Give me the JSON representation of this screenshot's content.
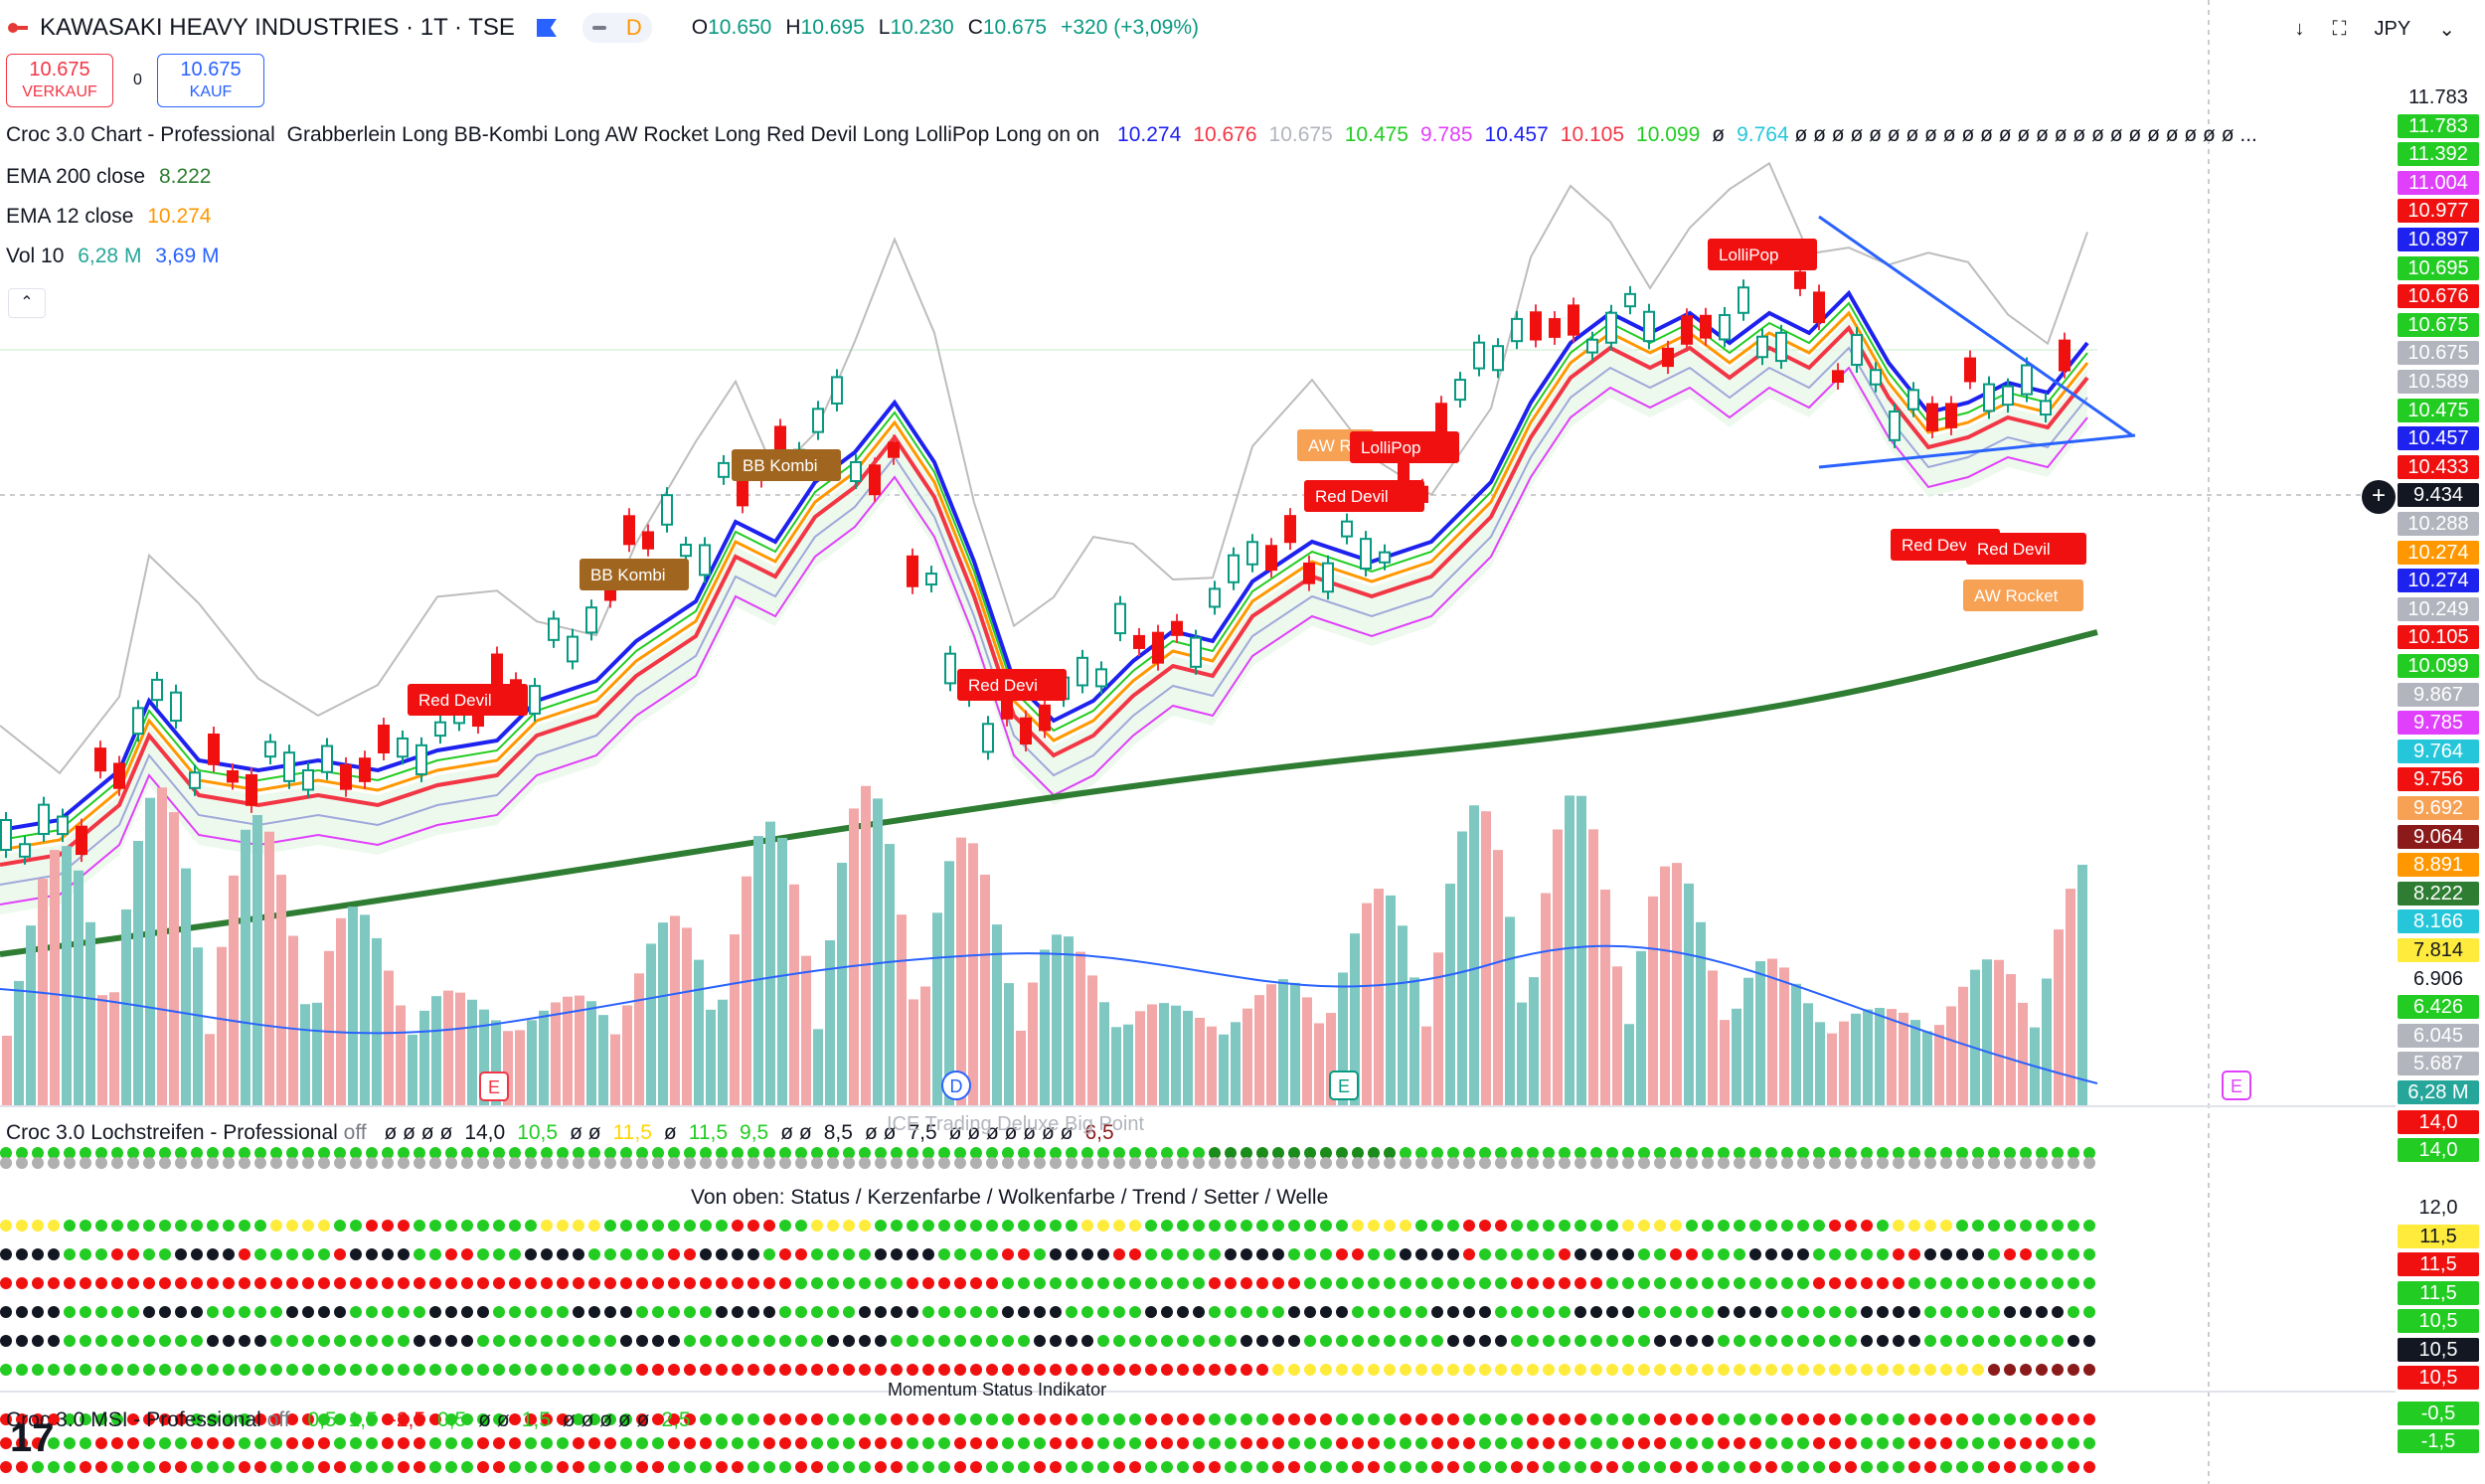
{
  "header": {
    "symbol": "KAWASAKI HEAVY INDUSTRIES · 1T · TSE",
    "mode": "D",
    "o_label": "O",
    "o": "10.650",
    "h_label": "H",
    "h": "10.695",
    "l_label": "L",
    "l": "10.230",
    "c_label": "C",
    "c": "10.675",
    "change": "+320 (+3,09%)"
  },
  "trade": {
    "sell_price": "10.675",
    "sell_label": "VERKAUF",
    "spread": "0",
    "buy_price": "10.675",
    "buy_label": "KAUF"
  },
  "toolbar_right": {
    "currency": "JPY"
  },
  "legend": {
    "croc_title": "Croc 3.0 Chart - Professional",
    "croc_params": "Grabberlein Long BB-Kombi Long AW Rocket Long Red Devil Long LolliPop Long on on",
    "croc_values": [
      {
        "v": "10.274",
        "c": "#1e22ee"
      },
      {
        "v": "10.676",
        "c": "#f23645"
      },
      {
        "v": "10.675",
        "c": "#b2b5be"
      },
      {
        "v": "10.475",
        "c": "#22cc22"
      },
      {
        "v": "9.785",
        "c": "#e040fb"
      },
      {
        "v": "10.457",
        "c": "#1e22ee"
      },
      {
        "v": "10.105",
        "c": "#f23645"
      },
      {
        "v": "10.099",
        "c": "#22cc22"
      },
      {
        "v": "ø",
        "c": "#131722"
      },
      {
        "v": "9.764",
        "c": "#26c6da"
      }
    ],
    "croc_tail": "ø ø ø ø ø ø ø ø ø ø ø ø ø ø ø ø ø ø ø ø ø ø ø ø ...",
    "ema200_label": "EMA 200 close",
    "ema200_value": "8.222",
    "ema12_label": "EMA 12 close",
    "ema12_value": "10.274",
    "vol_label": "Vol 10",
    "vol_value1": "6,28 M",
    "vol_value2": "3,69 M"
  },
  "signals": [
    {
      "text": "Red Devil",
      "color": "#f01010"
    },
    {
      "text": "BB Kombi",
      "color": "#a0661f"
    },
    {
      "text": "BB Kombi",
      "color": "#a0661f"
    },
    {
      "text": "Red Devi",
      "color": "#f01010"
    },
    {
      "text": "AW Ro",
      "color": "#f7a154"
    },
    {
      "text": "LolliPop",
      "color": "#f01010"
    },
    {
      "text": "Red Devil",
      "color": "#f01010"
    },
    {
      "text": "LolliPop",
      "color": "#f01010"
    },
    {
      "text": "Red Devi",
      "color": "#f01010"
    },
    {
      "text": "Red Devil",
      "color": "#f01010"
    },
    {
      "text": "AW Rocket",
      "color": "#f7a154"
    }
  ],
  "events": [
    "E",
    "D",
    "E",
    "E"
  ],
  "price_scale": [
    {
      "v": "11.783",
      "bg": "transparent",
      "fg": "#131722"
    },
    {
      "v": "11.783",
      "bg": "#22cc22",
      "fg": "#fff"
    },
    {
      "v": "11.392",
      "bg": "#22cc22",
      "fg": "#fff"
    },
    {
      "v": "11.004",
      "bg": "#e040fb",
      "fg": "#fff"
    },
    {
      "v": "10.977",
      "bg": "#f01010",
      "fg": "#fff"
    },
    {
      "v": "10.897",
      "bg": "#1e22ee",
      "fg": "#fff"
    },
    {
      "v": "10.695",
      "bg": "#22cc22",
      "fg": "#fff"
    },
    {
      "v": "10.676",
      "bg": "#f01010",
      "fg": "#fff"
    },
    {
      "v": "10.675",
      "bg": "#22cc22",
      "fg": "#fff"
    },
    {
      "v": "10.675",
      "bg": "#b2b5be",
      "fg": "#fff"
    },
    {
      "v": "10.589",
      "bg": "#b2b5be",
      "fg": "#fff"
    },
    {
      "v": "10.475",
      "bg": "#22cc22",
      "fg": "#fff"
    },
    {
      "v": "10.457",
      "bg": "#1e22ee",
      "fg": "#fff"
    },
    {
      "v": "10.433",
      "bg": "#f01010",
      "fg": "#fff"
    },
    {
      "v": "9.434",
      "bg": "#131722",
      "fg": "#fff"
    },
    {
      "v": "10.288",
      "bg": "#b2b5be",
      "fg": "#fff"
    },
    {
      "v": "10.274",
      "bg": "#ff9800",
      "fg": "#fff"
    },
    {
      "v": "10.274",
      "bg": "#1e22ee",
      "fg": "#fff"
    },
    {
      "v": "10.249",
      "bg": "#b2b5be",
      "fg": "#fff"
    },
    {
      "v": "10.105",
      "bg": "#f01010",
      "fg": "#fff"
    },
    {
      "v": "10.099",
      "bg": "#22cc22",
      "fg": "#fff"
    },
    {
      "v": "9.867",
      "bg": "#b2b5be",
      "fg": "#fff"
    },
    {
      "v": "9.785",
      "bg": "#e040fb",
      "fg": "#fff"
    },
    {
      "v": "9.764",
      "bg": "#26c6da",
      "fg": "#fff"
    },
    {
      "v": "9.756",
      "bg": "#f01010",
      "fg": "#fff"
    },
    {
      "v": "9.692",
      "bg": "#f7a154",
      "fg": "#fff"
    },
    {
      "v": "9.064",
      "bg": "#8b1a1a",
      "fg": "#fff"
    },
    {
      "v": "8.891",
      "bg": "#ff9800",
      "fg": "#fff"
    },
    {
      "v": "8.222",
      "bg": "#2e7d32",
      "fg": "#fff"
    },
    {
      "v": "8.166",
      "bg": "#26c6da",
      "fg": "#fff"
    },
    {
      "v": "7.814",
      "bg": "#ffeb3b",
      "fg": "#131722"
    },
    {
      "v": "6.906",
      "bg": "transparent",
      "fg": "#131722"
    },
    {
      "v": "6.426",
      "bg": "#22cc22",
      "fg": "#fff"
    },
    {
      "v": "6.045",
      "bg": "#b2b5be",
      "fg": "#fff"
    },
    {
      "v": "5.687",
      "bg": "#b2b5be",
      "fg": "#fff"
    },
    {
      "v": "6,28 M",
      "bg": "#26a69a",
      "fg": "#fff"
    }
  ],
  "lochstreifen": {
    "title": "Croc 3.0 Lochstreifen - Professional",
    "off": "off",
    "values": [
      {
        "v": "ø ø ø ø",
        "c": "#131722"
      },
      {
        "v": "14,0",
        "c": "#131722"
      },
      {
        "v": "10,5",
        "c": "#22cc22"
      },
      {
        "v": "ø ø",
        "c": "#131722"
      },
      {
        "v": "11,5",
        "c": "#ffd600"
      },
      {
        "v": "ø",
        "c": "#131722"
      },
      {
        "v": "11,5",
        "c": "#22cc22"
      },
      {
        "v": "9,5",
        "c": "#22cc22"
      },
      {
        "v": "ø ø",
        "c": "#131722"
      },
      {
        "v": "8,5",
        "c": "#131722"
      },
      {
        "v": "ø ø",
        "c": "#131722"
      },
      {
        "v": "7,5",
        "c": "#131722"
      },
      {
        "v": "ø ø ø ø ø ø ø",
        "c": "#131722"
      },
      {
        "v": "6,5",
        "c": "#8b1a1a"
      }
    ],
    "watermark": "ICE Trading Deluxe Big Point",
    "scale": [
      {
        "v": "14,0",
        "bg": "#f01010"
      },
      {
        "v": "14,0",
        "bg": "#22cc22"
      }
    ]
  },
  "status": {
    "title": "Von oben: Status / Kerzenfarbe / Wolkenfarbe / Trend / Setter / Welle",
    "scale": [
      {
        "v": "12,0",
        "bg": "transparent",
        "fg": "#131722"
      },
      {
        "v": "11,5",
        "bg": "#ffeb3b",
        "fg": "#131722"
      },
      {
        "v": "11,5",
        "bg": "#f01010",
        "fg": "#fff"
      },
      {
        "v": "11,5",
        "bg": "#22cc22",
        "fg": "#fff"
      },
      {
        "v": "10,5",
        "bg": "#22cc22",
        "fg": "#fff"
      },
      {
        "v": "10,5",
        "bg": "#131722",
        "fg": "#fff"
      },
      {
        "v": "10,5",
        "bg": "#f01010",
        "fg": "#fff"
      }
    ]
  },
  "msi": {
    "title": "Croc 3.0 MSI - Professional",
    "off": "off",
    "watermark": "Momentum Status Indikator",
    "values": [
      {
        "v": "0,5",
        "c": "#22cc22"
      },
      {
        "v": "1,5",
        "c": "#22cc22"
      },
      {
        "v": "-2,5",
        "c": "#f01010"
      },
      {
        "v": "0,5",
        "c": "#22cc22"
      },
      {
        "v": "ø ø",
        "c": "#131722"
      },
      {
        "v": "1,5",
        "c": "#22cc22"
      },
      {
        "v": "ø ø ø ø ø",
        "c": "#131722"
      },
      {
        "v": "2,5",
        "c": "#22cc22"
      }
    ],
    "scale": [
      {
        "v": "-0,5",
        "bg": "#22cc22"
      },
      {
        "v": "-1,5",
        "bg": "#22cc22"
      }
    ]
  },
  "logo": "17"
}
